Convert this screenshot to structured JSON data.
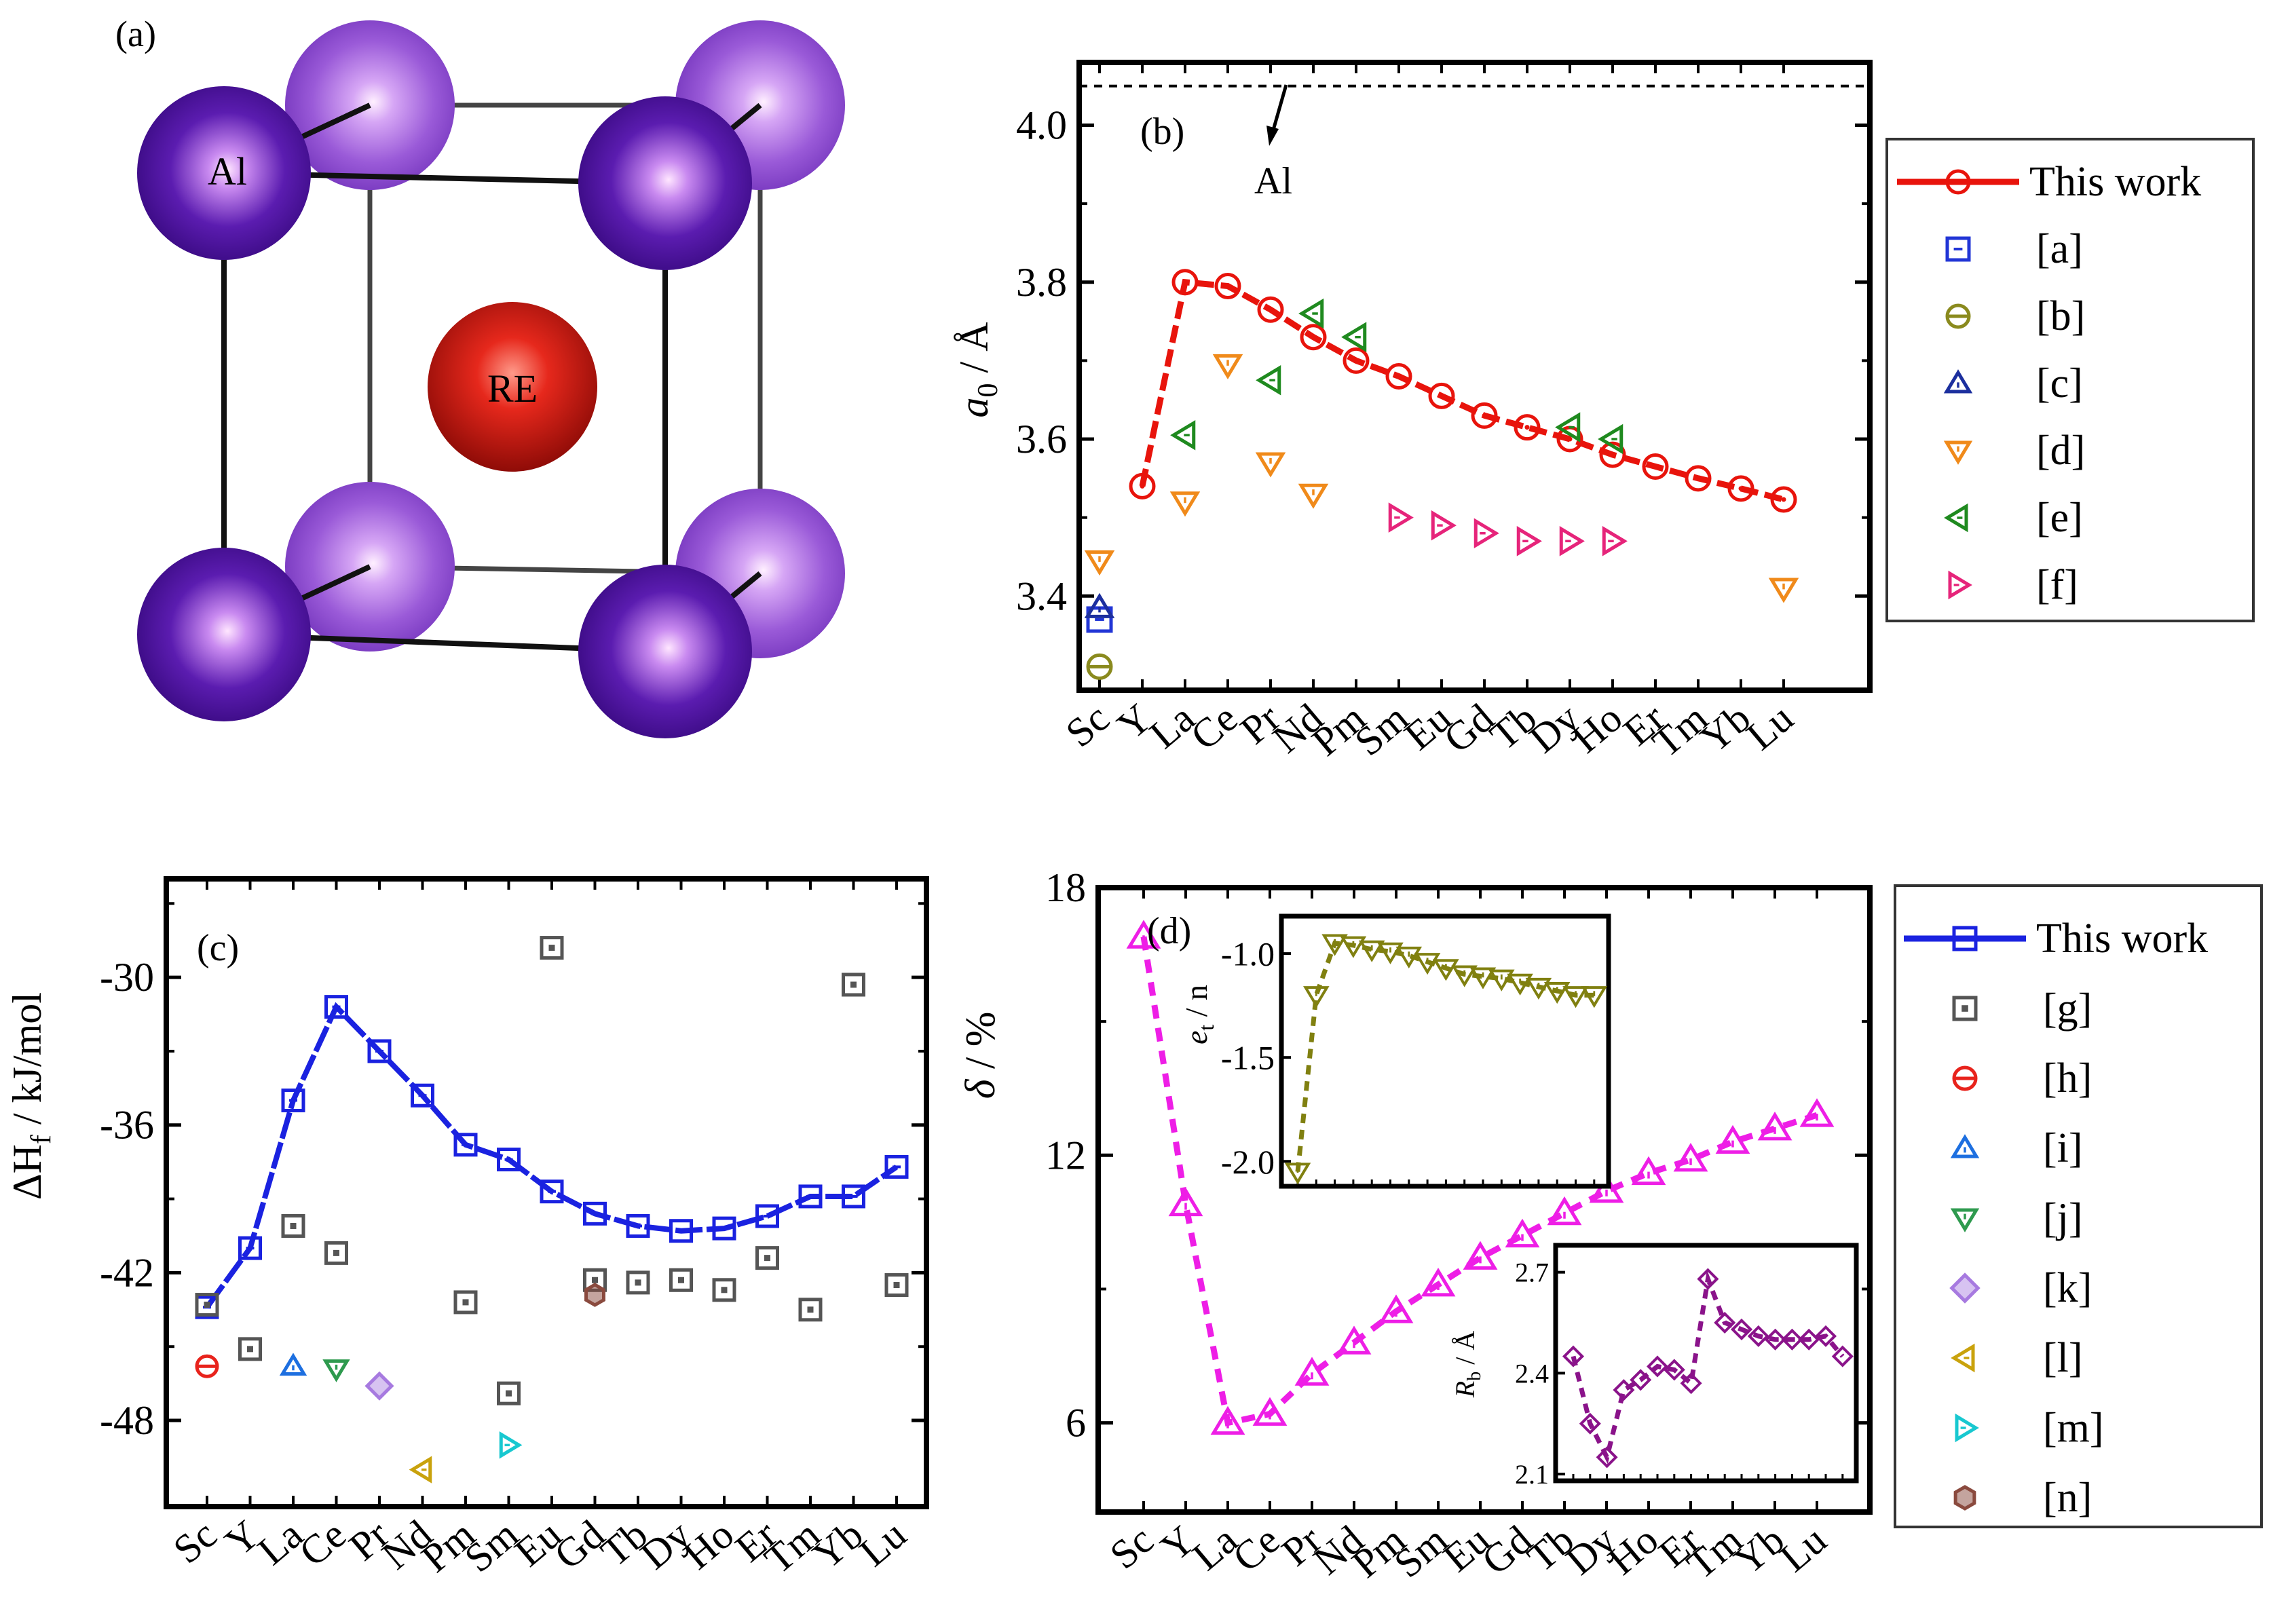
{
  "chart_data": [
    {
      "panel": "(a)",
      "type": "crystal-structure",
      "title": "(a)",
      "atom_labels": [
        "Al",
        "RE"
      ],
      "colors": {
        "corner_dark": "#4a0f9a",
        "corner_light": "#9455d6",
        "center": "#d11a0e"
      }
    },
    {
      "panel": "(b)",
      "type": "line",
      "title": "(b)",
      "categories": [
        "Sc",
        "Y",
        "La",
        "Ce",
        "Pr",
        "Nd",
        "Pm",
        "Sm",
        "Eu",
        "Gd",
        "Tb",
        "Dy",
        "Ho",
        "Er",
        "Tm",
        "Yb",
        "Lu"
      ],
      "ylabel_main": "a",
      "ylabel_sub": "0",
      "ylabel_unit": " / Å",
      "ylim": [
        3.28,
        4.08
      ],
      "yticks": [
        3.4,
        3.6,
        3.8,
        4.0
      ],
      "ytick_labels": [
        "3.4",
        "3.6",
        "3.8",
        "4.0"
      ],
      "reference_line": {
        "value": 4.05,
        "label": "Al"
      },
      "series": [
        {
          "name": "This work",
          "marker": "circle",
          "color": "#e8140c",
          "line": true,
          "x": [
            1,
            2,
            3,
            4,
            5,
            6,
            7,
            8,
            9,
            10,
            11,
            12,
            13,
            14,
            15,
            16
          ],
          "values": [
            3.54,
            3.8,
            3.795,
            3.765,
            3.73,
            3.7,
            3.68,
            3.655,
            3.63,
            3.615,
            3.6,
            3.58,
            3.565,
            3.55,
            3.537,
            3.523
          ]
        },
        {
          "name": "[a]",
          "marker": "square",
          "color": "#2135d6",
          "x": [
            0
          ],
          "values": [
            3.37
          ]
        },
        {
          "name": "[b]",
          "marker": "circle-bar",
          "color": "#8a8a1e",
          "x": [
            0
          ],
          "values": [
            3.31
          ]
        },
        {
          "name": "[c]",
          "marker": "triangle-up",
          "color": "#1c2f9e",
          "x": [
            0
          ],
          "values": [
            3.385
          ]
        },
        {
          "name": "[d]",
          "marker": "triangle-down",
          "color": "#f08a1a",
          "x": [
            0,
            2,
            3,
            4,
            5,
            16
          ],
          "values": [
            3.445,
            3.52,
            3.695,
            3.57,
            3.53,
            3.41
          ]
        },
        {
          "name": "[e]",
          "marker": "triangle-left",
          "color": "#1f8a1f",
          "x": [
            2,
            4,
            5,
            6,
            11,
            12
          ],
          "values": [
            3.605,
            3.675,
            3.76,
            3.73,
            3.615,
            3.6
          ]
        },
        {
          "name": "[f]",
          "marker": "triangle-right",
          "color": "#e6247a",
          "x": [
            7,
            8,
            9,
            10,
            11,
            12
          ],
          "values": [
            3.5,
            3.49,
            3.48,
            3.47,
            3.47,
            3.47
          ]
        }
      ]
    },
    {
      "panel": "(c)",
      "type": "line",
      "title": "(c)",
      "categories": [
        "Sc",
        "Y",
        "La",
        "Ce",
        "Pr",
        "Nd",
        "Pm",
        "Sm",
        "Eu",
        "Gd",
        "Tb",
        "Dy",
        "Ho",
        "Er",
        "Tm",
        "Yb",
        "Lu"
      ],
      "ylabel_main": "ΔH",
      "ylabel_sub": "f",
      "ylabel_unit": " / kJ/mol",
      "ylim": [
        -51.5,
        -26.0
      ],
      "yticks": [
        -48,
        -42,
        -36,
        -30
      ],
      "ytick_labels": [
        "-48",
        "-42",
        "-36",
        "-30"
      ],
      "series": [
        {
          "name": "This work",
          "marker": "square",
          "color": "#1a22e0",
          "line": true,
          "x": [
            0,
            1,
            2,
            3,
            4,
            5,
            6,
            7,
            8,
            9,
            10,
            11,
            12,
            13,
            14,
            15,
            16
          ],
          "values": [
            -43.4,
            -41.0,
            -35.0,
            -31.2,
            -33.0,
            -34.8,
            -36.8,
            -37.4,
            -38.7,
            -39.6,
            -40.1,
            -40.3,
            -40.2,
            -39.7,
            -38.9,
            -38.9,
            -37.7
          ]
        },
        {
          "name": "[g]",
          "marker": "square-dot",
          "color": "#555555",
          "x": [
            0,
            1,
            2,
            3,
            6,
            7,
            9,
            10,
            11,
            12,
            13,
            14,
            15,
            16
          ],
          "values": [
            -43.3,
            -45.1,
            -40.1,
            -41.2,
            -43.2,
            -46.9,
            -42.3,
            -42.4,
            -42.3,
            -42.7,
            -41.4,
            -43.5,
            -30.3,
            -42.5
          ]
        },
        {
          "name": "[h]",
          "marker": "circle-bar",
          "color": "#e8231c",
          "x": [
            0
          ],
          "values": [
            -45.8
          ]
        },
        {
          "name": "[i]",
          "marker": "triangle-up",
          "color": "#1d6fe0",
          "x": [
            2
          ],
          "values": [
            -45.8
          ]
        },
        {
          "name": "[j]",
          "marker": "triangle-down",
          "color": "#2e9a4e",
          "x": [
            3
          ],
          "values": [
            -45.9
          ]
        },
        {
          "name": "[k]",
          "marker": "diamond",
          "color": "#a77ae0",
          "x": [
            4
          ],
          "values": [
            -46.6
          ]
        },
        {
          "name": "[l]",
          "marker": "triangle-left",
          "color": "#c9a20c",
          "x": [
            5
          ],
          "values": [
            -50.0
          ]
        },
        {
          "name": "[m]",
          "marker": "triangle-right",
          "color": "#18c8d0",
          "x": [
            7
          ],
          "values": [
            -49.0
          ]
        },
        {
          "name": "[n]",
          "marker": "hexagon",
          "color": "#8a4a3e",
          "x": [
            9
          ],
          "values": [
            -42.9
          ]
        },
        {
          "name": "[g]-Eu",
          "legend": false,
          "marker": "square-dot",
          "color": "#555555",
          "x": [
            8
          ],
          "values": [
            -28.8
          ]
        }
      ]
    },
    {
      "panel": "(d)",
      "type": "line",
      "title": "(d)",
      "categories": [
        "Sc",
        "Y",
        "La",
        "Ce",
        "Pr",
        "Nd",
        "Pm",
        "Sm",
        "Eu",
        "Gd",
        "Tb",
        "Dy",
        "Ho",
        "Er",
        "Tm",
        "Yb",
        "Lu"
      ],
      "ylabel_main": "δ",
      "ylabel_unit": " / %",
      "ylim": [
        4.0,
        18.0
      ],
      "yticks": [
        6,
        12,
        18
      ],
      "ytick_labels": [
        "6",
        "12",
        "18"
      ],
      "series": [
        {
          "name": "δ",
          "marker": "triangle-up",
          "color": "#ee1ee6",
          "x": [
            0,
            1,
            2,
            3,
            4,
            5,
            6,
            7,
            8,
            9,
            10,
            11,
            12,
            13,
            14,
            15,
            16
          ],
          "values": [
            16.9,
            10.9,
            6.0,
            6.2,
            7.1,
            7.8,
            8.5,
            9.1,
            9.7,
            10.2,
            10.7,
            11.2,
            11.6,
            11.9,
            12.3,
            12.6,
            12.9
          ]
        }
      ],
      "inset_top": {
        "ylabel_main": "e",
        "ylabel_sub": "t",
        "ylabel_unit": " / n",
        "ylim": [
          -2.12,
          -0.82
        ],
        "yticks": [
          -2.0,
          -1.5,
          -1.0
        ],
        "ytick_labels": [
          "-2.0",
          "-1.5",
          "-1.0"
        ],
        "color": "#808010",
        "x": [
          0,
          1,
          2,
          3,
          4,
          5,
          6,
          7,
          8,
          9,
          10,
          11,
          12,
          13,
          14,
          15,
          16
        ],
        "values": [
          -2.05,
          -1.2,
          -0.95,
          -0.96,
          -0.98,
          -0.99,
          -1.01,
          -1.04,
          -1.07,
          -1.1,
          -1.11,
          -1.12,
          -1.14,
          -1.16,
          -1.18,
          -1.2,
          -1.2
        ]
      },
      "inset_bottom": {
        "ylabel_main": "R",
        "ylabel_sub": "b",
        "ylabel_unit": " / Å",
        "ylim": [
          2.08,
          2.78
        ],
        "yticks": [
          2.1,
          2.4,
          2.7
        ],
        "ytick_labels": [
          "2.1",
          "2.4",
          "2.7"
        ],
        "color": "#8a138a",
        "x": [
          0,
          1,
          2,
          3,
          4,
          5,
          6,
          7,
          8,
          9,
          10,
          11,
          12,
          13,
          14,
          15,
          16
        ],
        "values": [
          2.45,
          2.25,
          2.15,
          2.35,
          2.38,
          2.42,
          2.41,
          2.37,
          2.68,
          2.55,
          2.53,
          2.51,
          2.5,
          2.5,
          2.5,
          2.51,
          2.45
        ]
      }
    }
  ],
  "legend_b": {
    "entries": [
      "This work",
      "[a]",
      "[b]",
      "[c]",
      "[d]",
      "[e]",
      "[f]"
    ]
  },
  "legend_d": {
    "entries": [
      "This work",
      "[g]",
      "[h]",
      "[i]",
      "[j]",
      "[k]",
      "[l]",
      "[m]",
      "[n]"
    ]
  }
}
